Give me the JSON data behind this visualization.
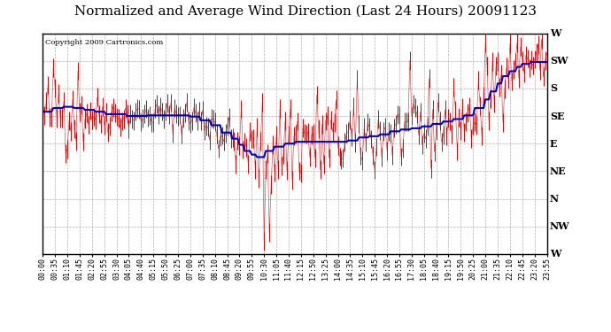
{
  "title": "Normalized and Average Wind Direction (Last 24 Hours) 20091123",
  "copyright": "Copyright 2009 Cartronics.com",
  "background_color": "#ffffff",
  "plot_bg_color": "#ffffff",
  "grid_color": "#b0b0b0",
  "bar_color": "#dd0000",
  "line_color": "#0000cc",
  "ytick_labels": [
    "W",
    "SW",
    "S",
    "SE",
    "E",
    "NE",
    "N",
    "NW",
    "W"
  ],
  "ytick_values": [
    360,
    315,
    270,
    225,
    180,
    135,
    90,
    45,
    0
  ],
  "ylim": [
    0,
    360
  ],
  "xtick_labels": [
    "00:00",
    "00:35",
    "01:10",
    "01:45",
    "02:20",
    "02:55",
    "03:30",
    "04:05",
    "04:40",
    "05:15",
    "05:50",
    "06:25",
    "07:00",
    "07:35",
    "08:10",
    "08:45",
    "09:20",
    "09:55",
    "10:30",
    "11:05",
    "11:40",
    "12:15",
    "12:50",
    "13:25",
    "14:00",
    "14:35",
    "15:10",
    "15:45",
    "16:20",
    "16:55",
    "17:30",
    "18:05",
    "18:40",
    "19:15",
    "19:50",
    "20:25",
    "21:00",
    "21:35",
    "22:10",
    "22:45",
    "23:20",
    "23:55"
  ],
  "title_fontsize": 11,
  "copyright_fontsize": 6,
  "tick_fontsize": 6,
  "ylabel_fontsize": 8,
  "n_points": 288,
  "seed": 42
}
